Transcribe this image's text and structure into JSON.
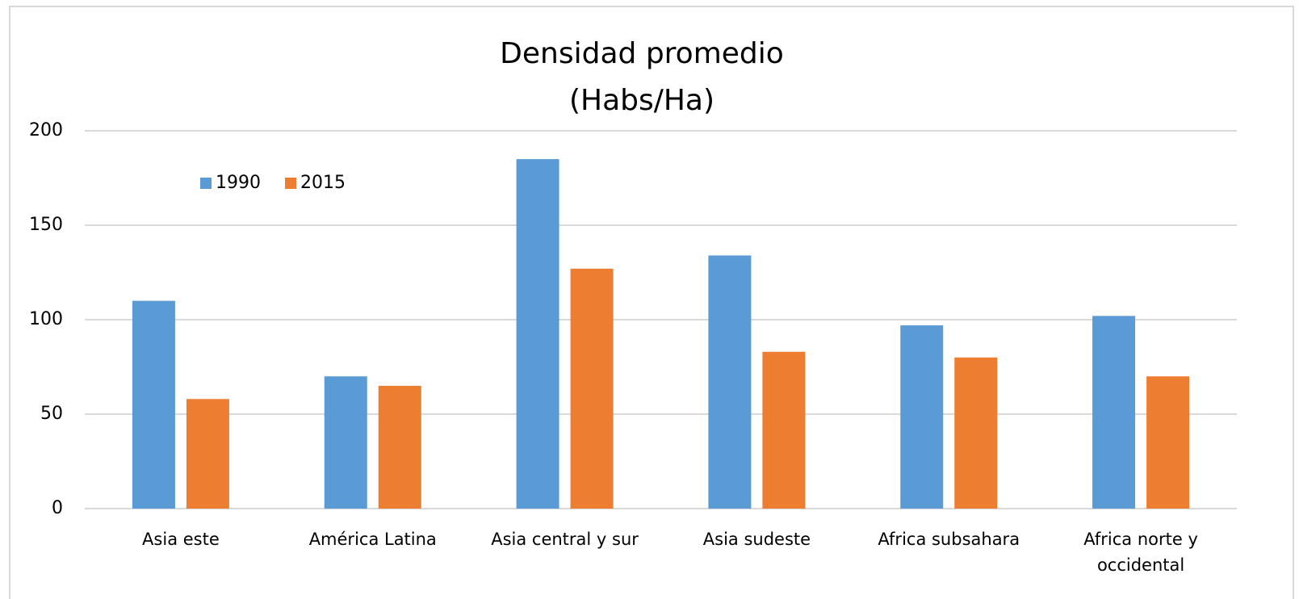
{
  "chart_data": {
    "type": "bar",
    "title_lines": [
      "Densidad promedio",
      "(Habs/Ha)"
    ],
    "categories": [
      "Asia este",
      "América Latina",
      "Asia central y sur",
      "Asia sudeste",
      "Africa subsahara",
      "Africa norte y occidental"
    ],
    "series": [
      {
        "name": "1990",
        "color": "#5b9bd5",
        "values": [
          110,
          70,
          185,
          134,
          97,
          102
        ]
      },
      {
        "name": "2015",
        "color": "#ed7d31",
        "values": [
          58,
          65,
          127,
          83,
          80,
          70
        ]
      }
    ],
    "ylim": [
      0,
      200
    ],
    "yticks": [
      0,
      50,
      100,
      150,
      200
    ],
    "grid": true,
    "legend": "upper left"
  }
}
